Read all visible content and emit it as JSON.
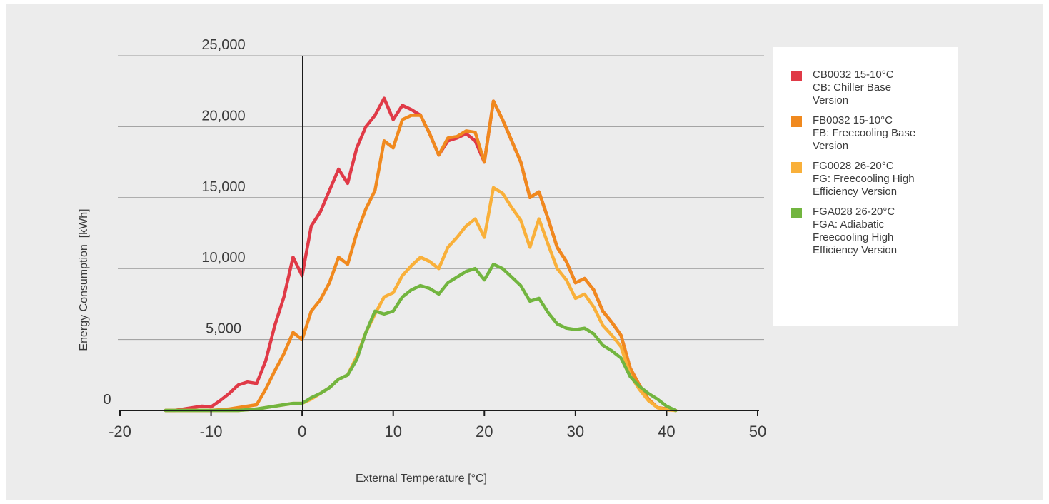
{
  "chart_data": {
    "type": "line",
    "title": "",
    "xlabel": "External Temperature [°C]",
    "ylabel": "Energy Consumption  [kWh]",
    "xlim": [
      -20,
      50
    ],
    "ylim": [
      0,
      25000
    ],
    "x_ticks": [
      "-20",
      "-10",
      "0",
      "10",
      "20",
      "30",
      "40",
      "50"
    ],
    "y_ticks": [
      "0",
      "5,000",
      "10,000",
      "15,000",
      "20,000",
      "25,000"
    ],
    "grid": "horizontal",
    "legend_position": "right",
    "series": [
      {
        "name": "CB0032 15-10°C",
        "legend_lines": [
          "CB0032 15-10°C",
          "CB: Chiller Base",
          "Version"
        ],
        "color": "#e03a47",
        "x": [
          -15,
          -14,
          -13,
          -12,
          -11,
          -10,
          -9,
          -8,
          -7,
          -6,
          -5,
          -4,
          -3,
          -2,
          -1,
          0,
          1,
          2,
          3,
          4,
          5,
          6,
          7,
          8,
          9,
          10,
          11,
          12,
          13,
          14,
          15,
          16,
          17,
          18,
          19,
          20,
          21,
          22,
          23,
          24,
          25,
          26,
          27,
          28,
          29,
          30,
          31,
          32,
          33,
          34,
          35,
          36,
          37,
          38,
          39,
          40,
          41
        ],
        "values": [
          0,
          0,
          100,
          200,
          300,
          250,
          700,
          1200,
          1800,
          2000,
          1900,
          3500,
          6000,
          8000,
          10800,
          9500,
          13000,
          14000,
          15500,
          17000,
          16000,
          18500,
          20000,
          20800,
          22000,
          20500,
          21500,
          21200,
          20800,
          19500,
          18000,
          19000,
          19200,
          19500,
          19000,
          17500,
          21800,
          20500,
          19000,
          17500,
          15000,
          15400,
          13500,
          11500,
          10500,
          9000,
          9300,
          8500,
          7000,
          6200,
          5300,
          3000,
          1800,
          800,
          200,
          100,
          0
        ]
      },
      {
        "name": "FB0032 15-10°C",
        "legend_lines": [
          "FB0032 15-10°C",
          "FB: Freecooling Base",
          "Version"
        ],
        "color": "#f0891e",
        "x": [
          -15,
          -14,
          -13,
          -12,
          -11,
          -10,
          -9,
          -8,
          -7,
          -6,
          -5,
          -4,
          -3,
          -2,
          -1,
          0,
          1,
          2,
          3,
          4,
          5,
          6,
          7,
          8,
          9,
          10,
          11,
          12,
          13,
          14,
          15,
          16,
          17,
          18,
          19,
          20,
          21,
          22,
          23,
          24,
          25,
          26,
          27,
          28,
          29,
          30,
          31,
          32,
          33,
          34,
          35,
          36,
          37,
          38,
          39,
          40,
          41
        ],
        "values": [
          0,
          0,
          0,
          0,
          0,
          0,
          50,
          100,
          200,
          300,
          400,
          1500,
          2800,
          4000,
          5500,
          5000,
          7000,
          7800,
          9000,
          10800,
          10300,
          12500,
          14200,
          15500,
          19000,
          18500,
          20500,
          20800,
          20800,
          19500,
          18000,
          19200,
          19300,
          19700,
          19600,
          17500,
          21800,
          20500,
          19000,
          17500,
          15000,
          15400,
          13500,
          11500,
          10500,
          9000,
          9300,
          8500,
          7000,
          6200,
          5300,
          3000,
          1800,
          800,
          200,
          100,
          0
        ]
      },
      {
        "name": "FG0028 26-20°C",
        "legend_lines": [
          "FG0028 26-20°C",
          "FG: Freecooling High",
          "Efficiency Version"
        ],
        "color": "#f9b03a",
        "x": [
          -15,
          -14,
          -13,
          -12,
          -11,
          -10,
          -9,
          -8,
          -7,
          -6,
          -5,
          -4,
          -3,
          -2,
          -1,
          0,
          1,
          2,
          3,
          4,
          5,
          6,
          7,
          8,
          9,
          10,
          11,
          12,
          13,
          14,
          15,
          16,
          17,
          18,
          19,
          20,
          21,
          22,
          23,
          24,
          25,
          26,
          27,
          28,
          29,
          30,
          31,
          32,
          33,
          34,
          35,
          36,
          37,
          38,
          39,
          40,
          41
        ],
        "values": [
          0,
          0,
          0,
          0,
          0,
          0,
          0,
          0,
          0,
          50,
          100,
          200,
          300,
          400,
          500,
          500,
          800,
          1200,
          1600,
          2200,
          2500,
          3800,
          5500,
          6800,
          8000,
          8300,
          9500,
          10200,
          10800,
          10500,
          10000,
          11500,
          12200,
          13000,
          13500,
          12200,
          15700,
          15300,
          14300,
          13400,
          11500,
          13500,
          11700,
          10000,
          9200,
          7900,
          8200,
          7300,
          6000,
          5300,
          4500,
          2500,
          1500,
          700,
          200,
          50,
          0
        ]
      },
      {
        "name": "FGA028 26-20°C",
        "legend_lines": [
          "FGA028 26-20°C",
          "FGA: Adiabatic",
          "Freecooling High",
          "Efficiency Version"
        ],
        "color": "#72b53f",
        "x": [
          -15,
          -14,
          -13,
          -12,
          -11,
          -10,
          -9,
          -8,
          -7,
          -6,
          -5,
          -4,
          -3,
          -2,
          -1,
          0,
          1,
          2,
          3,
          4,
          5,
          6,
          7,
          8,
          9,
          10,
          11,
          12,
          13,
          14,
          15,
          16,
          17,
          18,
          19,
          20,
          21,
          22,
          23,
          24,
          25,
          26,
          27,
          28,
          29,
          30,
          31,
          32,
          33,
          34,
          35,
          36,
          37,
          38,
          39,
          40,
          41
        ],
        "values": [
          0,
          0,
          0,
          0,
          0,
          0,
          0,
          0,
          0,
          50,
          100,
          200,
          300,
          400,
          500,
          500,
          900,
          1200,
          1600,
          2200,
          2500,
          3600,
          5500,
          7000,
          6800,
          7000,
          8000,
          8500,
          8800,
          8600,
          8200,
          9000,
          9400,
          9800,
          10000,
          9200,
          10300,
          10000,
          9400,
          8800,
          7700,
          7900,
          6900,
          6100,
          5800,
          5700,
          5800,
          5400,
          4600,
          4200,
          3700,
          2400,
          1700,
          1200,
          800,
          300,
          0
        ]
      }
    ]
  }
}
